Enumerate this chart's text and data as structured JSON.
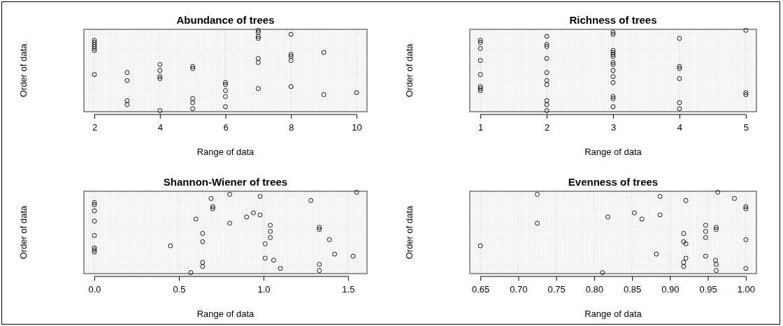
{
  "chart_data": [
    {
      "type": "scatter",
      "orientation": "horizontal",
      "title": "Abundance of trees",
      "xlabel": "Range of data",
      "ylabel": "Order of data",
      "marker": "circle",
      "grid": true,
      "tick_labels": "x",
      "xlim": [
        1.68,
        10.32
      ],
      "xticks": [
        2,
        4,
        6,
        8,
        10
      ],
      "categories": [
        null,
        null,
        null,
        null,
        null,
        null,
        null,
        null,
        null,
        null,
        null,
        null,
        null,
        null,
        null,
        null,
        null,
        null,
        null,
        null,
        null,
        null,
        null,
        null,
        null,
        null,
        null,
        null,
        null,
        null,
        null,
        null,
        null,
        null,
        null,
        null,
        null,
        null,
        null,
        null,
        null
      ],
      "values": [
        7,
        7,
        8,
        7,
        7,
        2,
        2,
        2,
        2,
        2,
        2,
        9,
        8,
        8,
        7,
        8,
        7,
        4,
        5,
        5,
        4,
        3,
        2,
        4,
        4,
        3,
        6,
        6,
        8,
        7,
        6,
        10,
        9,
        6,
        5,
        3,
        5,
        3,
        6,
        5,
        4
      ]
    },
    {
      "type": "scatter",
      "orientation": "horizontal",
      "title": "Richness of trees",
      "xlabel": "Range of data",
      "ylabel": "Order of data",
      "marker": "circle",
      "grid": true,
      "tick_labels": "x",
      "xlim": [
        0.84,
        5.16
      ],
      "xticks": [
        1,
        2,
        3,
        4,
        5
      ],
      "categories": [
        null,
        null,
        null,
        null,
        null,
        null,
        null,
        null,
        null,
        null,
        null,
        null,
        null,
        null,
        null,
        null,
        null,
        null,
        null,
        null,
        null,
        null,
        null,
        null,
        null,
        null,
        null,
        null,
        null,
        null,
        null,
        null,
        null,
        null,
        null,
        null,
        null,
        null,
        null,
        null,
        null
      ],
      "values": [
        5,
        3,
        3,
        2,
        4,
        1,
        1,
        2,
        2,
        1,
        3,
        3,
        3,
        3,
        2,
        1,
        3,
        3,
        4,
        4,
        3,
        2,
        1,
        3,
        4,
        2,
        3,
        2,
        1,
        1,
        1,
        5,
        5,
        3,
        3,
        2,
        4,
        2,
        3,
        4,
        2
      ]
    },
    {
      "type": "scatter",
      "orientation": "horizontal",
      "title": "Shannon-Wiener of trees",
      "xlabel": "Range of data",
      "ylabel": "Order of data",
      "marker": "circle",
      "grid": true,
      "tick_labels": "x",
      "xlim": [
        -0.062,
        1.612
      ],
      "xticks": [
        {
          "value": 0,
          "label": "0.0"
        },
        0.5,
        {
          "value": 1,
          "label": "1.0"
        },
        1.5
      ],
      "categories": [
        null,
        null,
        null,
        null,
        null,
        null,
        null,
        null,
        null,
        null,
        null,
        null,
        null,
        null,
        null,
        null,
        null,
        null,
        null,
        null,
        null,
        null,
        null,
        null,
        null,
        null,
        null,
        null,
        null,
        null,
        null,
        null,
        null,
        null,
        null,
        null,
        null,
        null,
        null,
        null
      ],
      "values": [
        1.55,
        0.8,
        0.98,
        0.69,
        1.28,
        0,
        0,
        0.7,
        0.7,
        0,
        0.94,
        0.98,
        0.9,
        0.6,
        0,
        0.8,
        1.04,
        1.33,
        1.33,
        1.04,
        0.64,
        0,
        1.04,
        1.39,
        0.64,
        1.01,
        0.45,
        0,
        0,
        0,
        1.42,
        1.53,
        1.01,
        1.06,
        0.64,
        1.33,
        0.64,
        1.1,
        1.33,
        0.57
      ]
    },
    {
      "type": "scatter",
      "orientation": "horizontal",
      "title": "Evenness of trees",
      "xlabel": "Range of data",
      "ylabel": "Order of data",
      "marker": "circle",
      "grid": true,
      "tick_labels": "x",
      "xlim": [
        0.636,
        1.014
      ],
      "xticks": [
        0.65,
        {
          "value": 0.7,
          "label": "0.70"
        },
        0.75,
        {
          "value": 0.8,
          "label": "0.80"
        },
        0.85,
        {
          "value": 0.9,
          "label": "0.90"
        },
        0.95,
        {
          "value": 1,
          "label": "1.00"
        }
      ],
      "categories": [
        null,
        null,
        null,
        null,
        null,
        null,
        null,
        null,
        null,
        null,
        null,
        null,
        null,
        null,
        null,
        null,
        null,
        null,
        null,
        null,
        null,
        null,
        null,
        null,
        null,
        null,
        null,
        null,
        null,
        null,
        null,
        null,
        null,
        null,
        null,
        null,
        null,
        null,
        null,
        null
      ],
      "values": [
        0.963,
        0.725,
        0.887,
        0.985,
        0.921,
        null,
        null,
        1,
        1,
        null,
        0.853,
        0.887,
        0.818,
        0.863,
        null,
        0.725,
        0.947,
        0.961,
        0.961,
        0.947,
        0.918,
        null,
        0.947,
        1,
        0.918,
        0.921,
        0.65,
        null,
        null,
        null,
        0.882,
        0.947,
        0.921,
        0.96,
        0.918,
        0.961,
        0.918,
        1,
        0.961,
        0.811
      ]
    }
  ]
}
